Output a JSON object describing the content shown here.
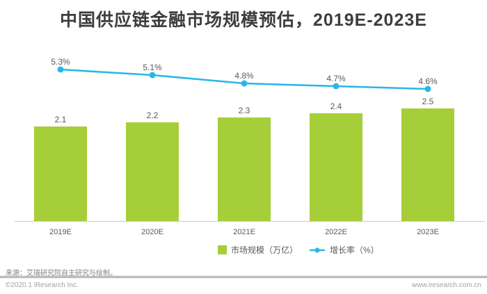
{
  "title": "中国供应链金融市场规模预估，2019E-2023E",
  "chart_data": {
    "type": "bar",
    "subtype": "bar-line-combo",
    "title": "中国供应链金融市场规模预估，2019E-2023E",
    "categories": [
      "2019E",
      "2020E",
      "2021E",
      "2022E",
      "2023E"
    ],
    "series": [
      {
        "name": "市场规模（万亿）",
        "type": "bar",
        "values": [
          2.1,
          2.2,
          2.3,
          2.4,
          2.5
        ],
        "labels": [
          "2.1",
          "2.2",
          "2.3",
          "2.4",
          "2.5"
        ]
      },
      {
        "name": "增长率（%）",
        "type": "line",
        "values": [
          5.3,
          5.1,
          4.8,
          4.7,
          4.6
        ],
        "labels": [
          "5.3%",
          "5.1%",
          "4.8%",
          "4.7%",
          "4.6%"
        ]
      }
    ],
    "xlabel": "",
    "ylabel": "",
    "grid": false,
    "legend_position": "bottom"
  },
  "legend": {
    "items": [
      {
        "label": "市场规模（万亿）",
        "marker": "green-square"
      },
      {
        "label": "增长率（%）",
        "marker": "blue-line-dot"
      }
    ]
  },
  "source_note": "来源：艾瑞研究院自主研究与绘制。",
  "footer": {
    "copyright": "©2020.1 iResearch Inc.",
    "website": "www.iresearch.com.cn"
  },
  "colors": {
    "bar": "#a6ce39",
    "line": "#2bb6e8",
    "title_text": "#3d3d3d",
    "label_text": "#595959"
  }
}
